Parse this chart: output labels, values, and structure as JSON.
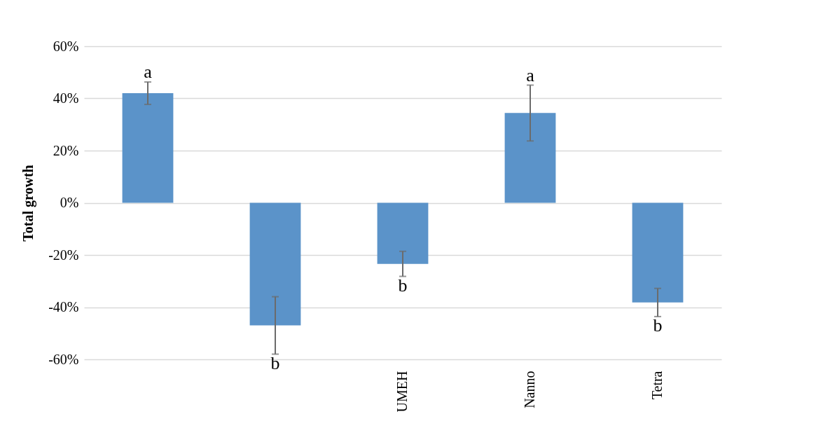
{
  "chart_data": {
    "type": "bar",
    "ylabel": "Total growth",
    "categories": [
      null,
      null,
      "UMEH",
      "Nanno",
      "Tetra"
    ],
    "values": [
      42,
      -47,
      -23.4,
      34.4,
      -38.2
    ],
    "color": "#5b93c9",
    "errors": [
      4.3,
      11,
      4.8,
      10.7,
      5.4
    ],
    "ylim": [
      -60,
      60
    ],
    "yticks": [
      {
        "value": -60,
        "label": "-60%"
      },
      {
        "value": -40,
        "label": "-40%"
      },
      {
        "value": -20,
        "label": "-20%"
      },
      {
        "value": 0,
        "label": "0%"
      },
      {
        "value": 20,
        "label": "20%"
      },
      {
        "value": 40,
        "label": "40%"
      },
      {
        "value": 60,
        "label": "60%"
      }
    ],
    "grid": "y",
    "annotations": [
      {
        "text": "a",
        "y": 46.3
      },
      {
        "text": "b",
        "y": -58
      },
      {
        "text": "b",
        "x": "UMEH",
        "y": -28.2
      },
      {
        "text": "a",
        "x": "Nanno",
        "y": 45.1
      },
      {
        "text": "b",
        "x": "Tetra",
        "y": -43.6
      }
    ]
  }
}
